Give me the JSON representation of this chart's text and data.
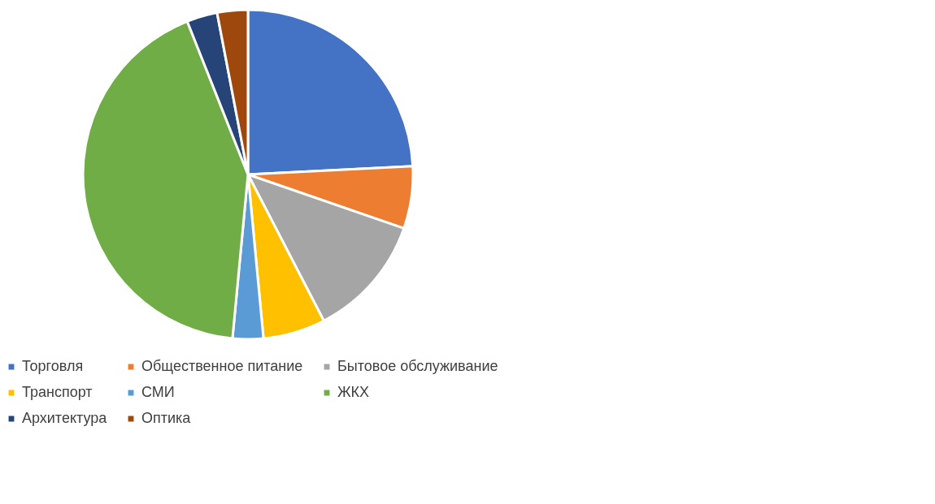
{
  "chart_data": {
    "type": "pie",
    "categories": [
      "Торговля",
      "Общественное питание",
      "Бытовое обслуживание",
      "Транспорт",
      "СМИ",
      "ЖКХ",
      "Архитектура",
      "Оптика"
    ],
    "values": [
      24.2,
      6.1,
      12.1,
      6.1,
      3.0,
      42.5,
      3.0,
      3.0
    ],
    "colors": [
      "#4472c4",
      "#ed7d31",
      "#a5a5a5",
      "#ffc000",
      "#5b9bd5",
      "#70ad47",
      "#264478",
      "#9e480e"
    ],
    "legend": "bottom"
  }
}
